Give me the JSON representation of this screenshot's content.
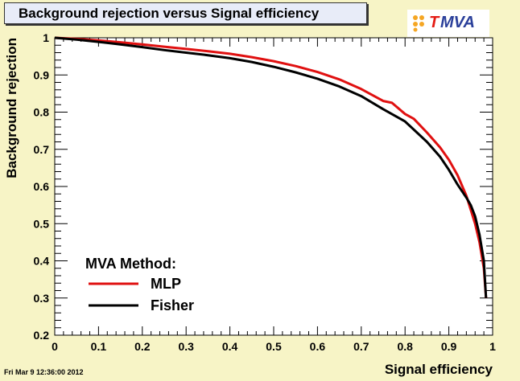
{
  "title": "Background rejection versus Signal efficiency",
  "logo": {
    "t": "T",
    "mva": "MVA"
  },
  "footer": {
    "timestamp": "Fri Mar  9 12:36:00 2012"
  },
  "colors": {
    "background": "#f7f4c6",
    "plot_area": "#ffffff",
    "mlp": "#e01010",
    "fisher": "#000000"
  },
  "chart_data": {
    "type": "line",
    "xlabel": "Signal efficiency",
    "ylabel": "Background rejection",
    "xlim": [
      0,
      1
    ],
    "ylim": [
      0.2,
      1
    ],
    "xticks": [
      0,
      0.1,
      0.2,
      0.3,
      0.4,
      0.5,
      0.6,
      0.7,
      0.8,
      0.9,
      1
    ],
    "yticks": [
      0.2,
      0.3,
      0.4,
      0.5,
      0.6,
      0.7,
      0.8,
      0.9,
      1
    ],
    "grid": false,
    "legend": {
      "title": "MVA Method:",
      "placement": "bottom-left"
    },
    "series": [
      {
        "name": "MLP",
        "color": "#e01010",
        "x": [
          0,
          0.05,
          0.1,
          0.15,
          0.2,
          0.25,
          0.3,
          0.35,
          0.4,
          0.45,
          0.5,
          0.55,
          0.6,
          0.65,
          0.7,
          0.75,
          0.77,
          0.8,
          0.82,
          0.85,
          0.88,
          0.9,
          0.92,
          0.94,
          0.96,
          0.97,
          0.98,
          0.985
        ],
        "y": [
          1.0,
          0.997,
          0.993,
          0.988,
          0.982,
          0.976,
          0.97,
          0.964,
          0.957,
          0.948,
          0.937,
          0.924,
          0.908,
          0.888,
          0.862,
          0.83,
          0.825,
          0.795,
          0.782,
          0.745,
          0.705,
          0.672,
          0.63,
          0.575,
          0.5,
          0.45,
          0.38,
          0.3
        ]
      },
      {
        "name": "Fisher",
        "color": "#000000",
        "x": [
          0,
          0.05,
          0.1,
          0.15,
          0.2,
          0.25,
          0.3,
          0.35,
          0.4,
          0.45,
          0.5,
          0.55,
          0.6,
          0.65,
          0.7,
          0.75,
          0.8,
          0.85,
          0.88,
          0.9,
          0.92,
          0.94,
          0.95,
          0.96,
          0.97,
          0.98,
          0.985
        ],
        "y": [
          1.0,
          0.995,
          0.989,
          0.982,
          0.975,
          0.967,
          0.96,
          0.953,
          0.945,
          0.935,
          0.922,
          0.907,
          0.89,
          0.869,
          0.843,
          0.808,
          0.775,
          0.72,
          0.68,
          0.645,
          0.605,
          0.57,
          0.55,
          0.52,
          0.47,
          0.4,
          0.3
        ]
      }
    ]
  }
}
